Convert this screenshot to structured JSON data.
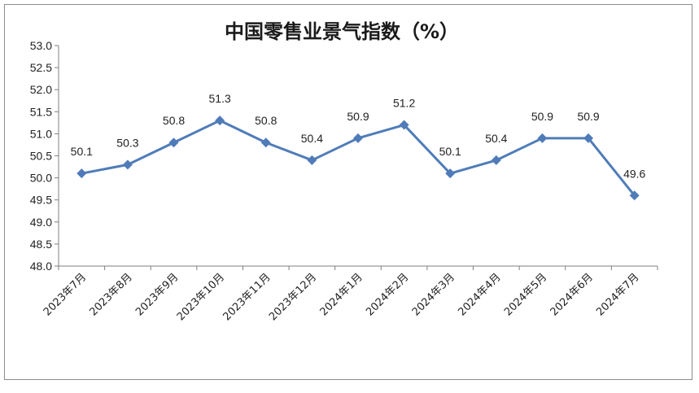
{
  "chart_data": {
    "type": "line",
    "title": "中国零售业景气指数（%）",
    "categories": [
      "2023年7月",
      "2023年8月",
      "2023年9月",
      "2023年10月",
      "2023年11月",
      "2023年12月",
      "2024年1月",
      "2024年2月",
      "2024年3月",
      "2024年4月",
      "2024年5月",
      "2024年6月",
      "2024年7月"
    ],
    "series": [
      {
        "values": [
          50.1,
          50.3,
          50.8,
          51.3,
          50.8,
          50.4,
          50.9,
          51.2,
          50.1,
          50.4,
          50.9,
          50.9,
          49.6
        ]
      }
    ],
    "data_labels": [
      "50.1",
      "50.3",
      "50.8",
      "51.3",
      "50.8",
      "50.4",
      "50.9",
      "51.2",
      "50.1",
      "50.4",
      "50.9",
      "50.9",
      "49.6"
    ],
    "ylim": [
      48.0,
      53.0
    ],
    "y_ticks": [
      "48.0",
      "48.5",
      "49.0",
      "49.5",
      "50.0",
      "50.5",
      "51.0",
      "51.5",
      "52.0",
      "52.5",
      "53.0"
    ],
    "grid": false,
    "legend": "none",
    "line_color": "#4f7cb8"
  }
}
